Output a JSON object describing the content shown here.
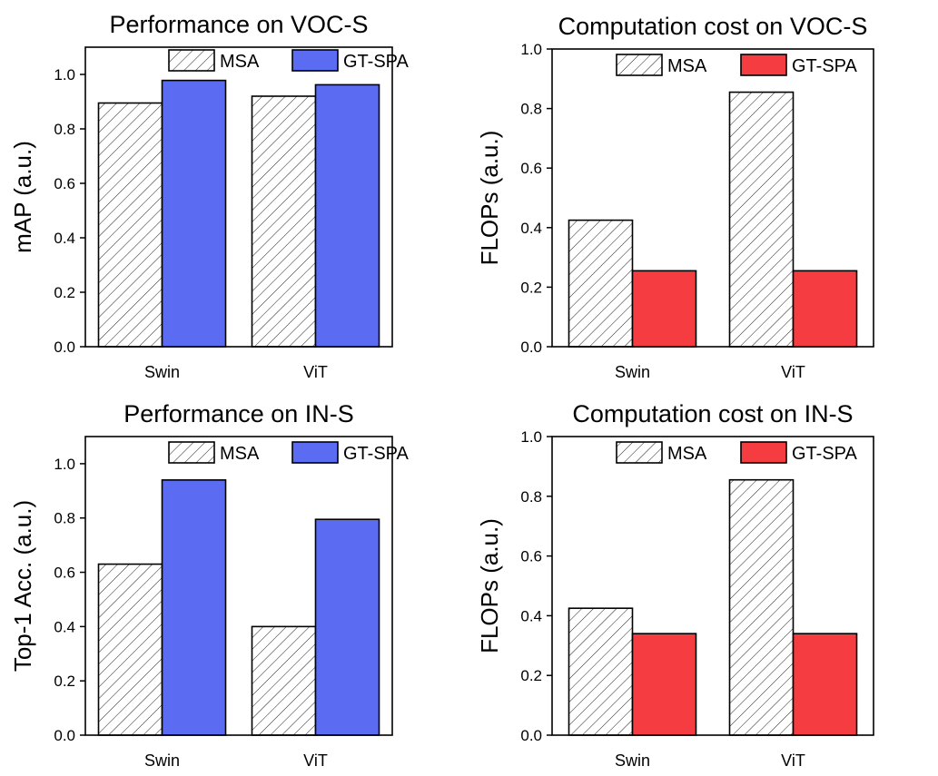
{
  "chart_data": [
    {
      "type": "bar",
      "title": "Performance on VOC-S",
      "xlabel": "",
      "ylabel": "mAP (a.u.)",
      "categories": [
        "Swin",
        "ViT"
      ],
      "ylim": [
        0,
        1.1
      ],
      "yticks": [
        0.0,
        0.2,
        0.4,
        0.6,
        0.8,
        1.0
      ],
      "ytick_labels": [
        "0.0",
        "0.2",
        "0.4",
        "0.6",
        "0.8",
        "1.0"
      ],
      "grid": false,
      "legend_position": "top",
      "series": [
        {
          "name": "MSA",
          "style": "hatched",
          "color": "#ffffff",
          "values": [
            0.895,
            0.92
          ]
        },
        {
          "name": "GT-SPA",
          "style": "solid",
          "color": "#5b6cf2",
          "values": [
            0.978,
            0.962
          ]
        }
      ]
    },
    {
      "type": "bar",
      "title": "Computation cost on VOC-S",
      "xlabel": "",
      "ylabel": "FLOPs (a.u.)",
      "categories": [
        "Swin",
        "ViT"
      ],
      "ylim": [
        0,
        1.0
      ],
      "yticks": [
        0.0,
        0.2,
        0.4,
        0.6,
        0.8,
        1.0
      ],
      "ytick_labels": [
        "0.0",
        "0.2",
        "0.4",
        "0.6",
        "0.8",
        "1.0"
      ],
      "grid": false,
      "legend_position": "top-right",
      "series": [
        {
          "name": "MSA",
          "style": "hatched",
          "color": "#ffffff",
          "values": [
            0.425,
            0.855
          ]
        },
        {
          "name": "GT-SPA",
          "style": "solid",
          "color": "#f53c40",
          "values": [
            0.255,
            0.255
          ]
        }
      ]
    },
    {
      "type": "bar",
      "title": "Performance on IN-S",
      "xlabel": "",
      "ylabel": "Top-1 Acc. (a.u.)",
      "categories": [
        "Swin",
        "ViT"
      ],
      "ylim": [
        0,
        1.1
      ],
      "yticks": [
        0.0,
        0.2,
        0.4,
        0.6,
        0.8,
        1.0
      ],
      "ytick_labels": [
        "0.0",
        "0.2",
        "0.4",
        "0.6",
        "0.8",
        "1.0"
      ],
      "grid": false,
      "legend_position": "top",
      "series": [
        {
          "name": "MSA",
          "style": "hatched",
          "color": "#ffffff",
          "values": [
            0.63,
            0.4
          ]
        },
        {
          "name": "GT-SPA",
          "style": "solid",
          "color": "#5b6cf2",
          "values": [
            0.94,
            0.795
          ]
        }
      ]
    },
    {
      "type": "bar",
      "title": "Computation cost on IN-S",
      "xlabel": "",
      "ylabel": "FLOPs (a.u.)",
      "categories": [
        "Swin",
        "ViT"
      ],
      "ylim": [
        0,
        1.0
      ],
      "yticks": [
        0.0,
        0.2,
        0.4,
        0.6,
        0.8,
        1.0
      ],
      "ytick_labels": [
        "0.0",
        "0.2",
        "0.4",
        "0.6",
        "0.8",
        "1.0"
      ],
      "grid": false,
      "legend_position": "top-right",
      "series": [
        {
          "name": "MSA",
          "style": "hatched",
          "color": "#ffffff",
          "values": [
            0.425,
            0.855
          ]
        },
        {
          "name": "GT-SPA",
          "style": "solid",
          "color": "#f53c40",
          "values": [
            0.34,
            0.34
          ]
        }
      ]
    }
  ]
}
